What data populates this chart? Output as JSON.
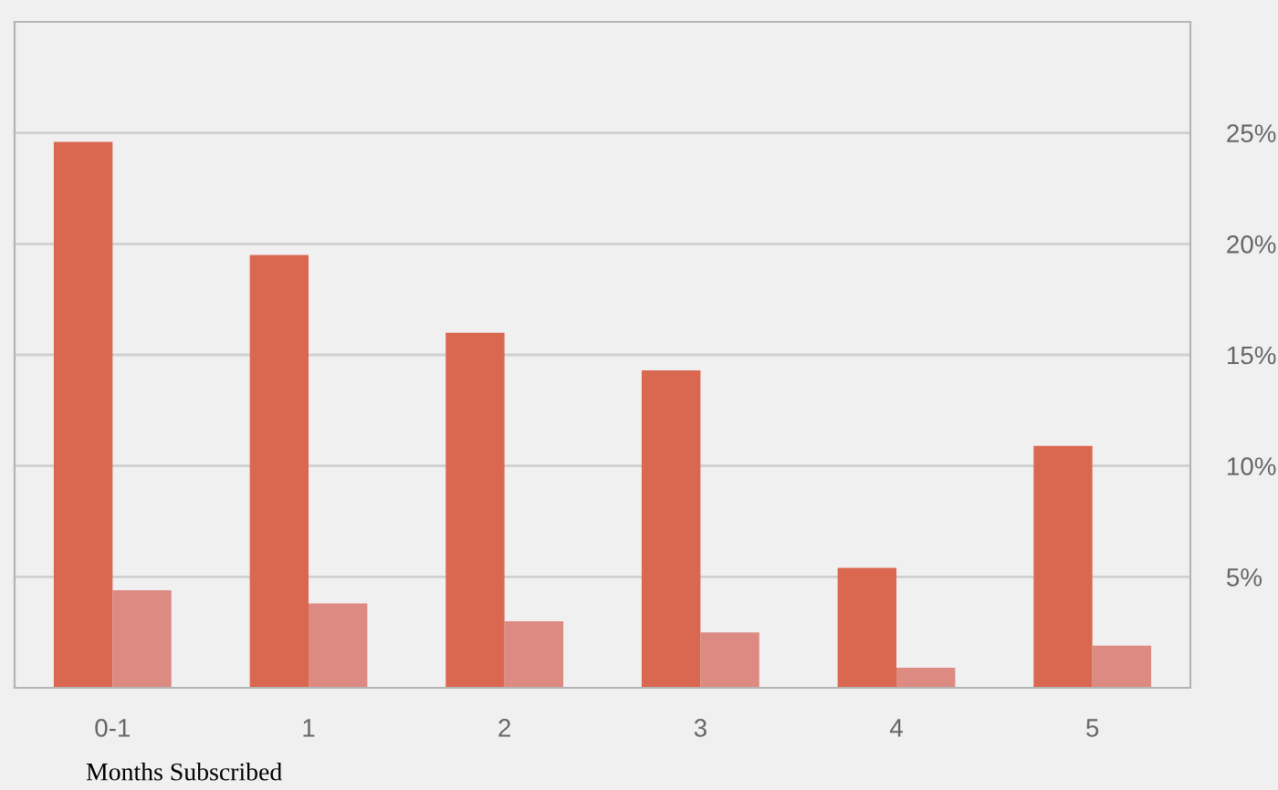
{
  "chart_data": {
    "type": "bar",
    "xlabel": "Months Subscribed",
    "categories": [
      "0-1",
      "1",
      "2",
      "3",
      "4",
      "5"
    ],
    "series": [
      {
        "color": "#da6850",
        "values": [
          24.6,
          19.5,
          16.0,
          14.3,
          5.4,
          10.9
        ]
      },
      {
        "color": "#dc8a82",
        "values": [
          4.4,
          3.8,
          3.0,
          2.5,
          0.9,
          1.9
        ]
      }
    ],
    "ylim": [
      0,
      30
    ],
    "yticks": [
      {
        "value": 5,
        "label": "5%"
      },
      {
        "value": 10,
        "label": "10%"
      },
      {
        "value": 15,
        "label": "15%"
      },
      {
        "value": 20,
        "label": "20%"
      },
      {
        "value": 25,
        "label": "25%"
      }
    ],
    "grid": "y"
  }
}
